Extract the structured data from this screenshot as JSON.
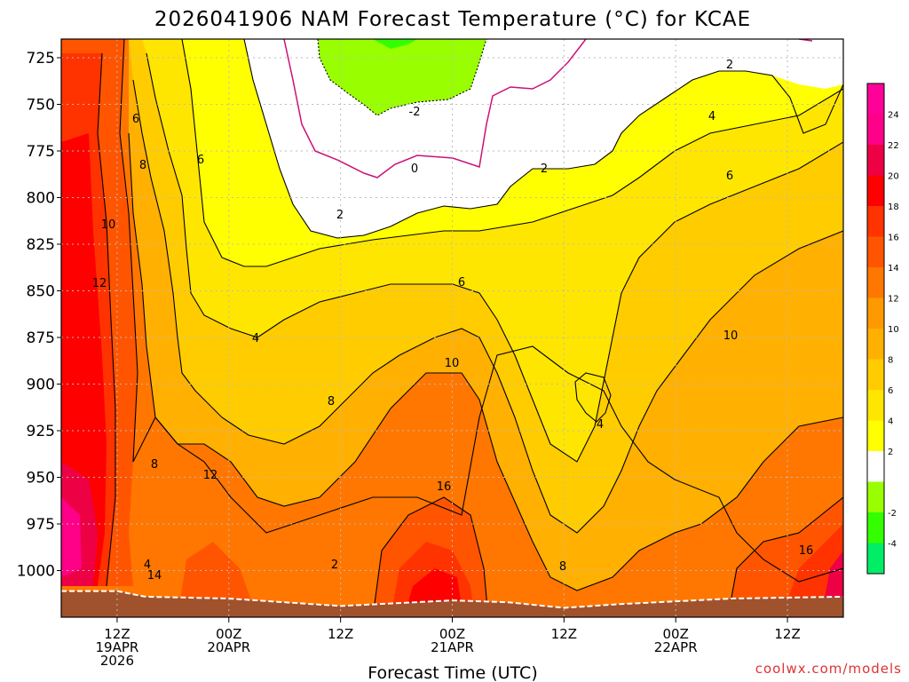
{
  "chart_data": {
    "type": "heatmap",
    "title": "2026041906 NAM Forecast Temperature (°C) for KCAE",
    "xlabel": "Forecast Time (UTC)",
    "credit": "coolwx.com/models",
    "x_hours_range": [
      0,
      84
    ],
    "pressure_range_hPa": [
      1025,
      715
    ],
    "y_ticks": [
      725,
      750,
      775,
      800,
      825,
      850,
      875,
      900,
      925,
      950,
      975,
      1000
    ],
    "y_tick_labels": [
      "725",
      "750",
      "775",
      "800",
      "825",
      "850",
      "875",
      "900",
      "925",
      "950",
      "975",
      "1000"
    ],
    "x_ticks": [
      {
        "hour": 6,
        "line1": "12Z",
        "line2": "19APR",
        "line3": "2026"
      },
      {
        "hour": 18,
        "line1": "00Z",
        "line2": "20APR",
        "line3": ""
      },
      {
        "hour": 30,
        "line1": "12Z",
        "line2": "",
        "line3": ""
      },
      {
        "hour": 42,
        "line1": "00Z",
        "line2": "21APR",
        "line3": ""
      },
      {
        "hour": 54,
        "line1": "12Z",
        "line2": "",
        "line3": ""
      },
      {
        "hour": 66,
        "line1": "00Z",
        "line2": "22APR",
        "line3": ""
      },
      {
        "hour": 78,
        "line1": "12Z",
        "line2": "",
        "line3": ""
      }
    ],
    "colorbar": {
      "bins": [
        {
          "min": -6,
          "max": -4,
          "color": "#00ee66"
        },
        {
          "min": -4,
          "max": -2,
          "color": "#33ff00"
        },
        {
          "min": -2,
          "max": 0,
          "color": "#99ff00"
        },
        {
          "min": 0,
          "max": 2,
          "color": "#ffffff"
        },
        {
          "min": 2,
          "max": 4,
          "color": "#ffff00"
        },
        {
          "min": 4,
          "max": 6,
          "color": "#ffe600"
        },
        {
          "min": 6,
          "max": 8,
          "color": "#ffcc00"
        },
        {
          "min": 8,
          "max": 10,
          "color": "#ffb000"
        },
        {
          "min": 10,
          "max": 12,
          "color": "#ff9900"
        },
        {
          "min": 12,
          "max": 14,
          "color": "#ff7700"
        },
        {
          "min": 14,
          "max": 16,
          "color": "#ff5500"
        },
        {
          "min": 16,
          "max": 18,
          "color": "#ff3300"
        },
        {
          "min": 18,
          "max": 20,
          "color": "#ff0000"
        },
        {
          "min": 20,
          "max": 22,
          "color": "#ee0044"
        },
        {
          "min": 22,
          "max": 24,
          "color": "#ff0088"
        },
        {
          "min": 24,
          "max": 26,
          "color": "#ff0099"
        }
      ],
      "tick_labels": [
        "-4",
        "-2",
        "2",
        "4",
        "6",
        "8",
        "10",
        "12",
        "14",
        "16",
        "18",
        "20",
        "22",
        "24"
      ]
    },
    "contour_labels": [
      "-2",
      "0",
      "2",
      "2",
      "2",
      "2",
      "4",
      "4",
      "4",
      "4",
      "6",
      "6",
      "6",
      "6",
      "8",
      "8",
      "8",
      "8",
      "10",
      "10",
      "10",
      "12",
      "12",
      "14",
      "16",
      "16"
    ],
    "surface_pressure_hPa": [
      {
        "h": 0,
        "p": 1011
      },
      {
        "h": 6,
        "p": 1011
      },
      {
        "h": 9,
        "p": 1014
      },
      {
        "h": 18,
        "p": 1015
      },
      {
        "h": 30,
        "p": 1019
      },
      {
        "h": 42,
        "p": 1016
      },
      {
        "h": 48,
        "p": 1017
      },
      {
        "h": 54,
        "p": 1020
      },
      {
        "h": 60,
        "p": 1018
      },
      {
        "h": 72,
        "p": 1015
      },
      {
        "h": 84,
        "p": 1014
      }
    ],
    "colors": {
      "ground": "#a0522d",
      "freezing_line": "#cc1177",
      "grid": "#bbbbbb"
    }
  }
}
